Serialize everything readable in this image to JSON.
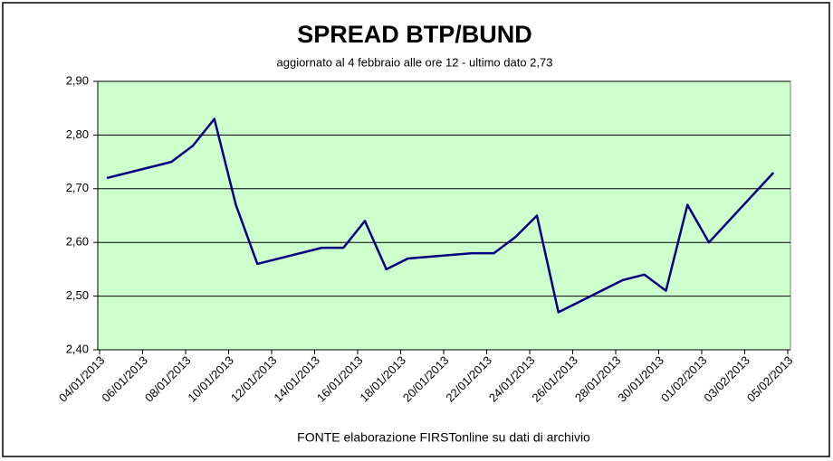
{
  "chart_data": {
    "type": "line",
    "title": "SPREAD  BTP/BUND",
    "subtitle": "aggiornato al 4 febbraio alle ore 12 - ultimo dato 2,73",
    "source": "FONTE elaborazione FIRSTonline su dati di archivio",
    "x": [
      "04/01/2013",
      "07/01/2013",
      "08/01/2013",
      "09/01/2013",
      "10/01/2013",
      "11/01/2013",
      "14/01/2013",
      "15/01/2013",
      "16/01/2013",
      "17/01/2013",
      "18/01/2013",
      "21/01/2013",
      "22/01/2013",
      "23/01/2013",
      "24/01/2013",
      "25/01/2013",
      "28/01/2013",
      "29/01/2013",
      "30/01/2013",
      "31/01/2013",
      "01/02/2013",
      "04/02/2013"
    ],
    "values": [
      2.72,
      2.75,
      2.78,
      2.83,
      2.67,
      2.56,
      2.59,
      2.59,
      2.64,
      2.55,
      2.57,
      2.58,
      2.58,
      2.61,
      2.65,
      2.47,
      2.53,
      2.54,
      2.51,
      2.67,
      2.6,
      2.73
    ],
    "color": "#000080",
    "xlim": [
      "04/01/2013",
      "05/02/2013"
    ],
    "xticks": [
      "04/01/2013",
      "06/01/2013",
      "08/01/2013",
      "10/01/2013",
      "12/01/2013",
      "14/01/2013",
      "16/01/2013",
      "18/01/2013",
      "20/01/2013",
      "22/01/2013",
      "24/01/2013",
      "26/01/2013",
      "28/01/2013",
      "30/01/2013",
      "01/02/2013",
      "03/02/2013",
      "05/02/2013"
    ],
    "ylim": [
      2.4,
      2.9
    ],
    "yticks": [
      {
        "value": 2.4,
        "label": "2,40"
      },
      {
        "value": 2.5,
        "label": "2,50"
      },
      {
        "value": 2.6,
        "label": "2,60"
      },
      {
        "value": 2.7,
        "label": "2,70"
      },
      {
        "value": 2.8,
        "label": "2,80"
      },
      {
        "value": 2.9,
        "label": "2,90"
      }
    ],
    "grid": true
  }
}
